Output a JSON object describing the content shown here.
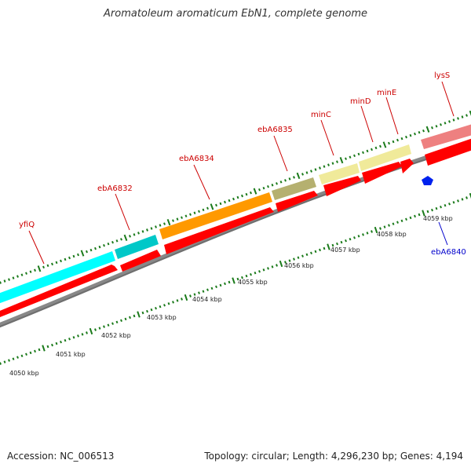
{
  "header": {
    "title": "Aromatoleum aromaticum EbN1, complete genome"
  },
  "footer": {
    "accession": "Accession: NC_006513",
    "summary": "Topology: circular; Length: 4,296,230 bp; Genes: 4,194"
  },
  "colors": {
    "backbone": "#888888",
    "cds": "#ff0000",
    "tick": "#1a7a1a",
    "label_red": "#cc0000",
    "label_blue": "#0000cc",
    "rna_blue": "#0022ee"
  },
  "scale_labels": [
    "4050 kbp",
    "4051 kbp",
    "4052 kbp",
    "4053 kbp",
    "4054 kbp",
    "4055 kbp",
    "4056 kbp",
    "4057 kbp",
    "4058 kbp",
    "4059 kbp"
  ],
  "genes": {
    "yfiQ": {
      "label": "yfiQ",
      "color": "#00ffff"
    },
    "ebA6832": {
      "label": "ebA6832",
      "color": "#00c8c8"
    },
    "ebA6834": {
      "label": "ebA6834",
      "color": "#ff9900"
    },
    "ebA6835": {
      "label": "ebA6835",
      "color": "#b5b070"
    },
    "minC": {
      "label": "minC",
      "color": "#f0ea9a"
    },
    "minD": {
      "label": "minD",
      "color": "#f0ea9a"
    },
    "minE": {
      "label": "minE",
      "color": "#f0ea9a"
    },
    "lysS": {
      "label": "lysS",
      "color": "#ee8080"
    },
    "ebA6840": {
      "label": "ebA6840",
      "color": "#0022ee"
    }
  }
}
